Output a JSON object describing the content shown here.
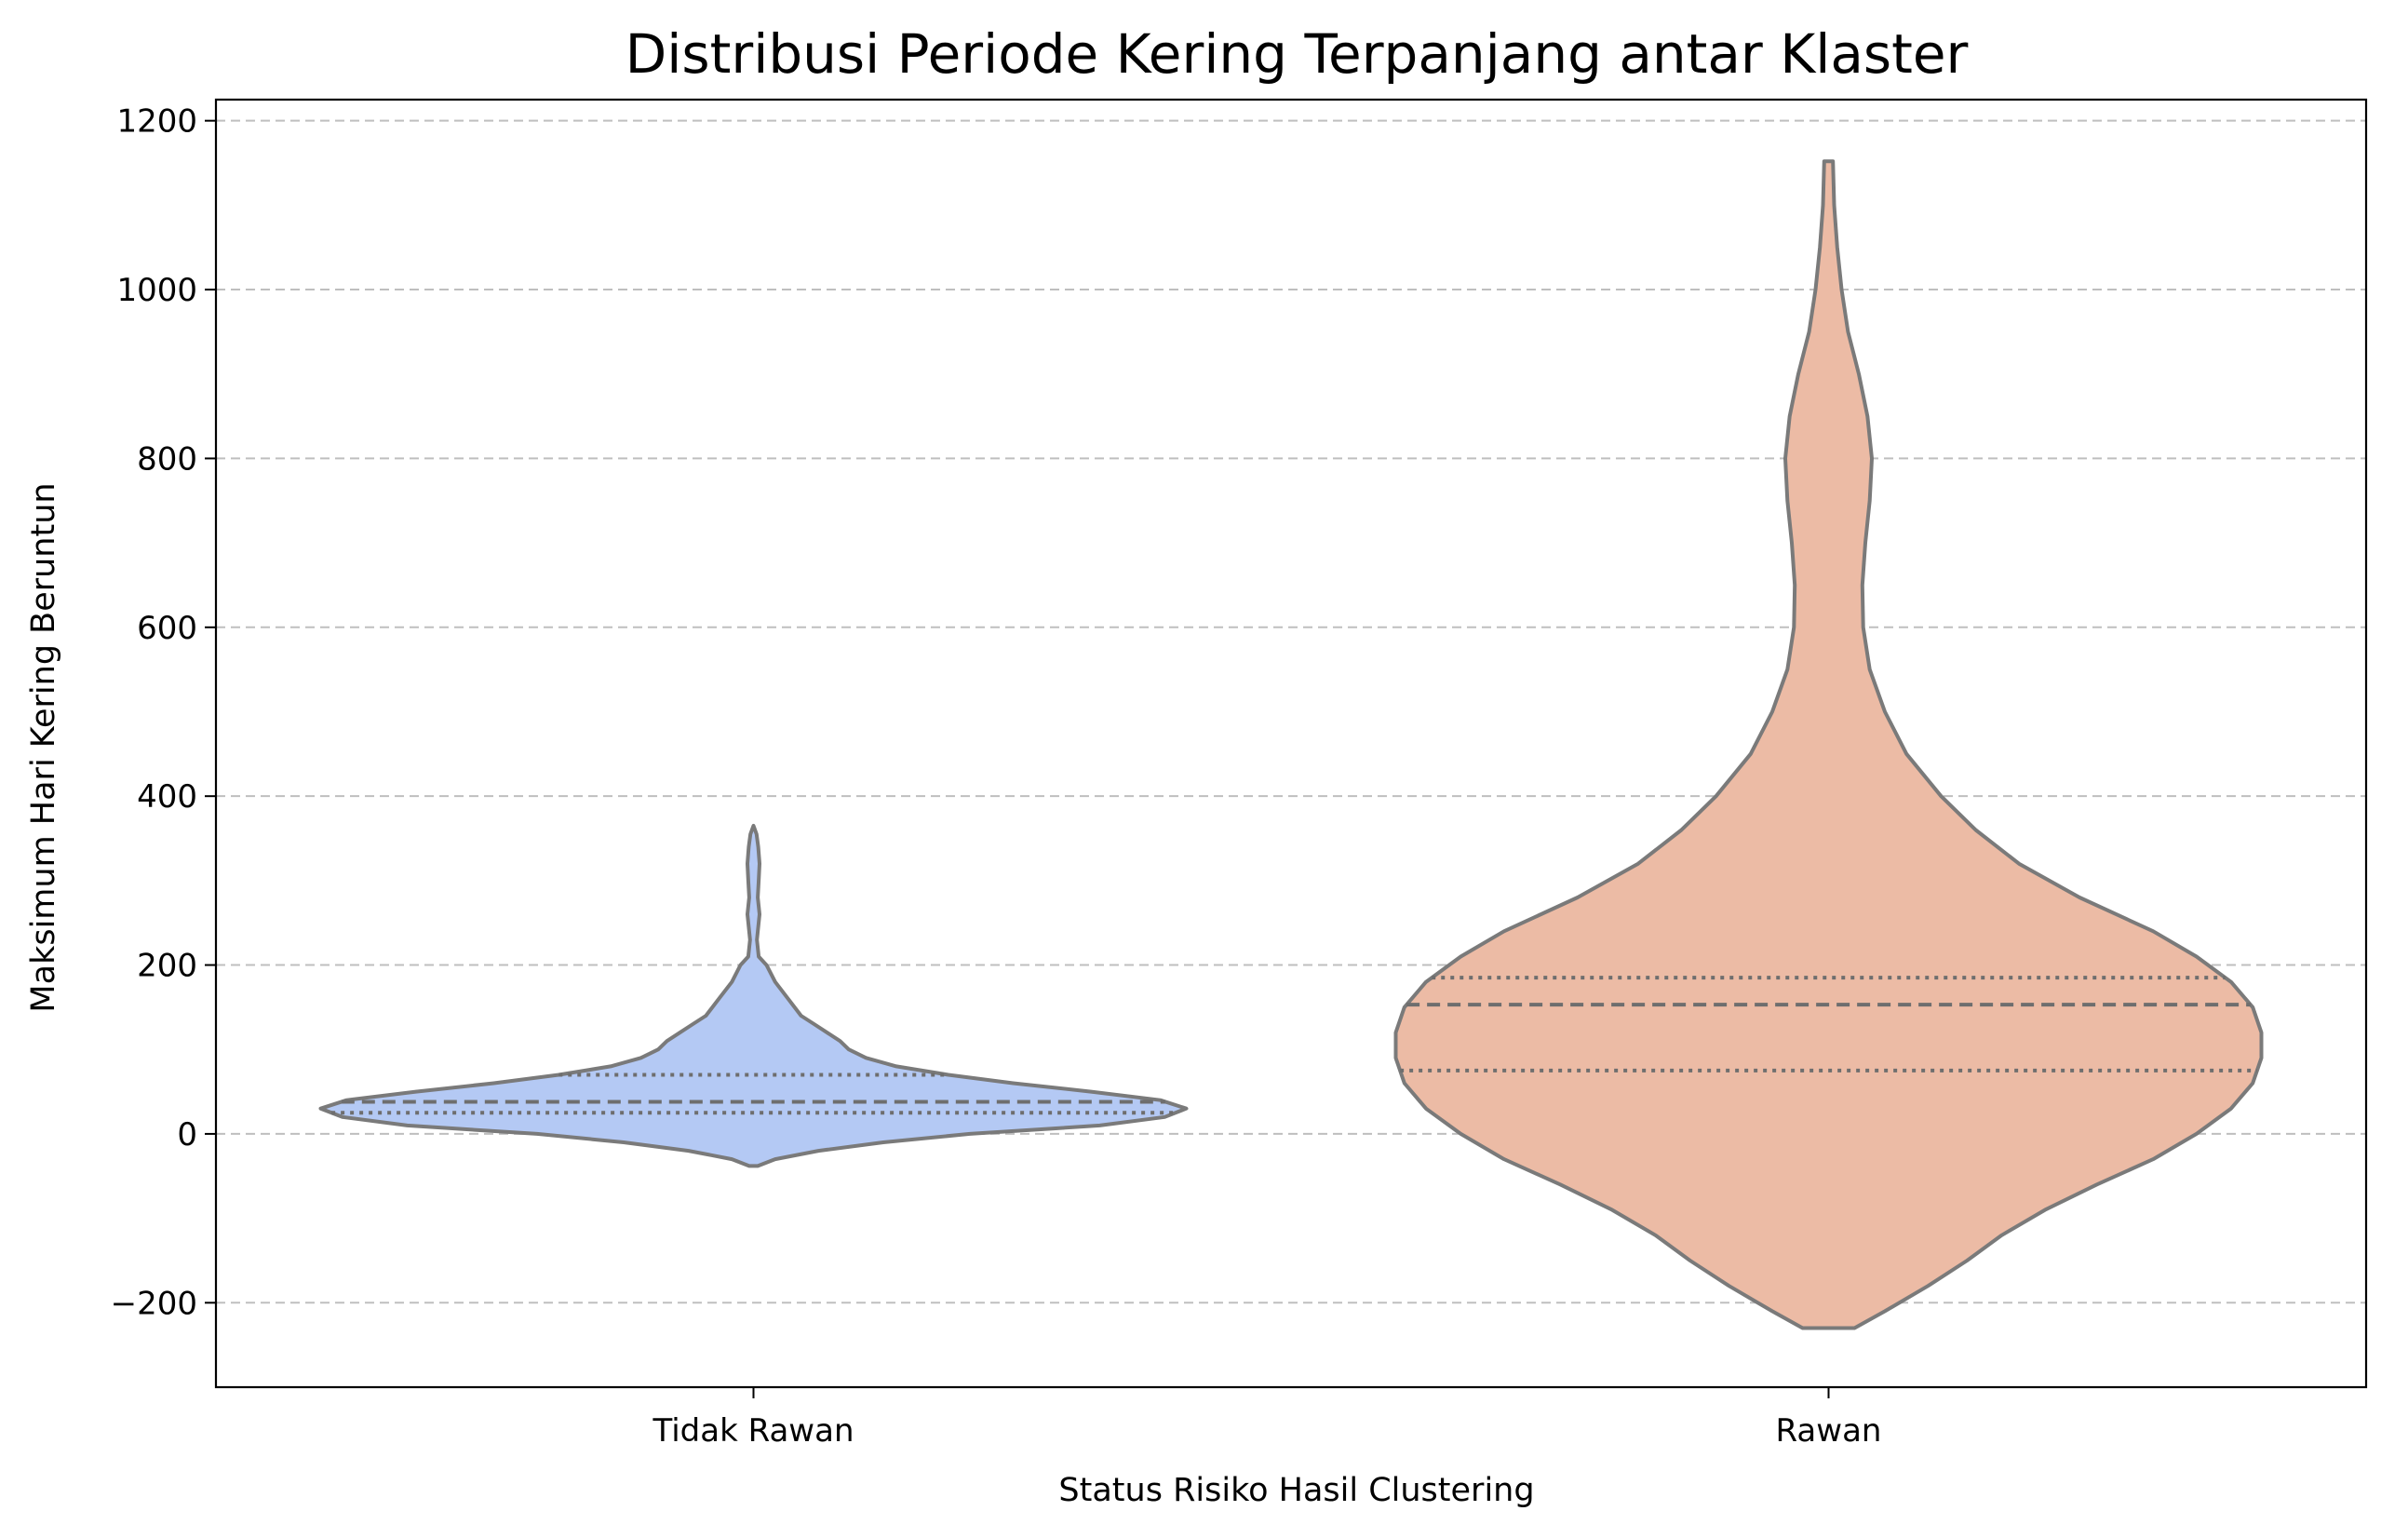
{
  "chart_data": {
    "type": "violin",
    "title": "Distribusi Periode Kering Terpanjang antar Klaster",
    "xlabel": "Status Risiko Hasil Clustering",
    "ylabel": "Maksimum Hari Kering Beruntun",
    "categories": [
      "Tidak Rawan",
      "Rawan"
    ],
    "ylim": [
      -300,
      1225
    ],
    "yticks": [
      -200,
      0,
      200,
      400,
      600,
      800,
      1000,
      1200
    ],
    "ytick_labels": [
      "−200",
      "0",
      "200",
      "400",
      "600",
      "800",
      "1000",
      "1200"
    ],
    "grid": {
      "axis": "y",
      "style": "dashed",
      "color": "#bfbfbf"
    },
    "violins": [
      {
        "category": "Tidak Rawan",
        "fill": "#b4c9f4",
        "min": -38,
        "max": 365,
        "q1": 25,
        "median": 38,
        "q3": 70,
        "profile": [
          [
            -38,
            0.01
          ],
          [
            -30,
            0.05
          ],
          [
            -20,
            0.15
          ],
          [
            -10,
            0.3
          ],
          [
            0,
            0.5
          ],
          [
            10,
            0.8
          ],
          [
            20,
            0.95
          ],
          [
            30,
            1.0
          ],
          [
            40,
            0.94
          ],
          [
            50,
            0.78
          ],
          [
            60,
            0.6
          ],
          [
            70,
            0.45
          ],
          [
            80,
            0.33
          ],
          [
            90,
            0.26
          ],
          [
            100,
            0.22
          ],
          [
            110,
            0.2
          ],
          [
            120,
            0.17
          ],
          [
            130,
            0.14
          ],
          [
            140,
            0.11
          ],
          [
            160,
            0.08
          ],
          [
            180,
            0.05
          ],
          [
            200,
            0.03
          ],
          [
            210,
            0.012
          ],
          [
            230,
            0.008
          ],
          [
            260,
            0.014
          ],
          [
            280,
            0.01
          ],
          [
            300,
            0.012
          ],
          [
            320,
            0.014
          ],
          [
            340,
            0.011
          ],
          [
            355,
            0.007
          ],
          [
            365,
            0.0
          ]
        ]
      },
      {
        "category": "Rawan",
        "fill": "#ecbba5",
        "min": -230,
        "max": 1152,
        "q1": 75,
        "median": 153,
        "q3": 185,
        "profile": [
          [
            -230,
            0.06
          ],
          [
            -210,
            0.13
          ],
          [
            -180,
            0.23
          ],
          [
            -150,
            0.32
          ],
          [
            -120,
            0.4
          ],
          [
            -90,
            0.5
          ],
          [
            -60,
            0.62
          ],
          [
            -30,
            0.75
          ],
          [
            0,
            0.85
          ],
          [
            30,
            0.93
          ],
          [
            60,
            0.98
          ],
          [
            90,
            1.0
          ],
          [
            120,
            1.0
          ],
          [
            150,
            0.98
          ],
          [
            180,
            0.93
          ],
          [
            210,
            0.85
          ],
          [
            240,
            0.75
          ],
          [
            280,
            0.58
          ],
          [
            320,
            0.44
          ],
          [
            360,
            0.34
          ],
          [
            400,
            0.26
          ],
          [
            450,
            0.18
          ],
          [
            500,
            0.13
          ],
          [
            550,
            0.095
          ],
          [
            600,
            0.08
          ],
          [
            650,
            0.078
          ],
          [
            700,
            0.085
          ],
          [
            750,
            0.095
          ],
          [
            800,
            0.1
          ],
          [
            850,
            0.09
          ],
          [
            900,
            0.07
          ],
          [
            950,
            0.045
          ],
          [
            1000,
            0.03
          ],
          [
            1050,
            0.02
          ],
          [
            1100,
            0.013
          ],
          [
            1152,
            0.01
          ]
        ]
      }
    ]
  }
}
